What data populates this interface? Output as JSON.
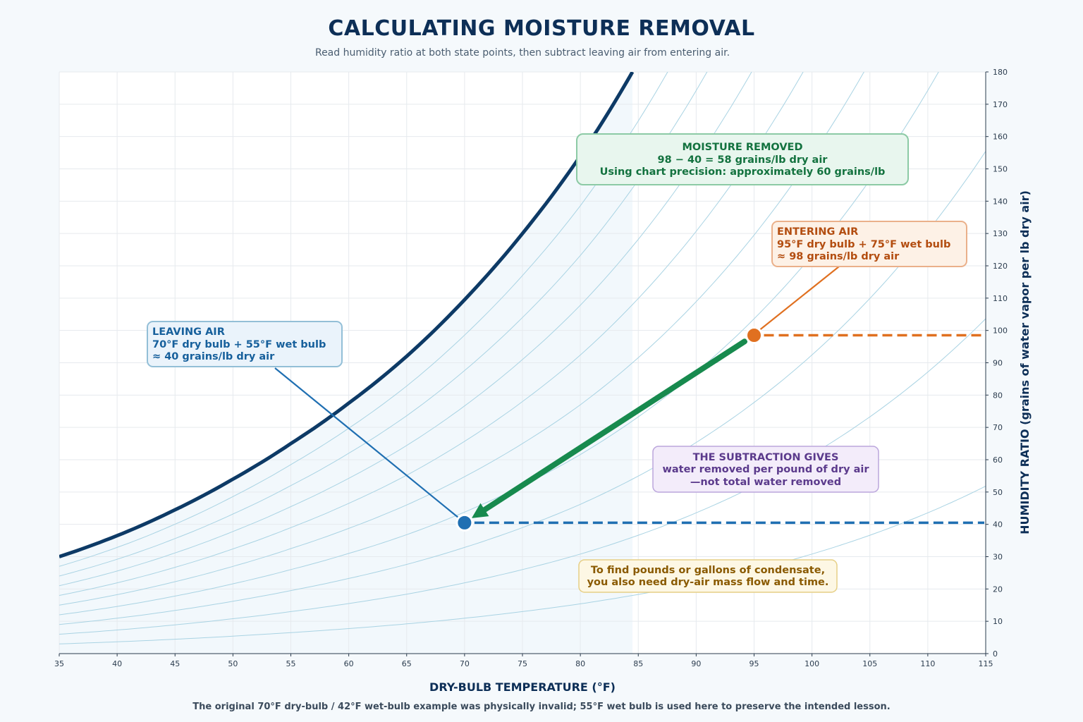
{
  "chart_data": {
    "type": "line",
    "title": "CALCULATING MOISTURE REMOVAL",
    "subtitle": "Read humidity ratio at both state points, then subtract leaving air from entering air.",
    "xlabel": "DRY-BULB TEMPERATURE (°F)",
    "ylabel": "HUMIDITY RATIO (grains of water vapor per lb dry air)",
    "xlim": [
      35,
      115
    ],
    "ylim": [
      0,
      180
    ],
    "x_ticks": [
      35,
      40,
      45,
      50,
      55,
      60,
      65,
      70,
      75,
      80,
      85,
      90,
      95,
      100,
      105,
      110,
      115
    ],
    "y_ticks": [
      0,
      10,
      20,
      30,
      40,
      50,
      60,
      70,
      80,
      90,
      100,
      110,
      120,
      130,
      140,
      150,
      160,
      170,
      180
    ],
    "grid": true,
    "y_axis_position": "right",
    "saturation_curve": {
      "x": [
        35,
        40,
        45,
        50,
        55,
        60,
        65,
        70,
        75,
        80,
        84.5
      ],
      "y": [
        30,
        36.5,
        44.5,
        54,
        65,
        77.5,
        92,
        109.5,
        130,
        154,
        180
      ]
    },
    "rh_curves": [
      0.1,
      0.2,
      0.3,
      0.4,
      0.5,
      0.6,
      0.7,
      0.8,
      0.9
    ],
    "points": [
      {
        "name": "entering",
        "x": 95,
        "y": 98.5,
        "color": "#e07020"
      },
      {
        "name": "leaving",
        "x": 70,
        "y": 40.5,
        "color": "#1f6fb2"
      }
    ],
    "annotations": {
      "removed": {
        "title": "MOISTURE REMOVED",
        "line2": "98 − 40 = 58 grains/lb dry air",
        "line3": "Using chart precision: approximately 60 grains/lb"
      },
      "entering": {
        "title": "ENTERING AIR",
        "line2": "95°F dry bulb + 75°F wet bulb",
        "line3": "≈ 98 grains/lb dry air"
      },
      "leaving": {
        "title": "LEAVING AIR",
        "line2": "70°F dry bulb + 55°F wet bulb",
        "line3": "≈ 40 grains/lb dry air"
      },
      "subtraction": {
        "title": "THE SUBTRACTION GIVES",
        "line2": "water removed per pound of dry air",
        "line3": "—not total water removed"
      },
      "condensate": {
        "line1": "To find pounds or gallons of condensate,",
        "line2": "you also need dry-air mass flow and time."
      }
    },
    "footnote": "The original 70°F dry-bulb / 42°F wet-bulb example was physically invalid; 55°F wet bulb is used here to preserve the intended lesson."
  },
  "colors": {
    "saturation": "#0d3a66",
    "rh_curve": "#a9d3e3",
    "grid": "#e6eaee",
    "removal_arrow": "#178a4e",
    "entering": "#e07020",
    "leaving": "#1f6fb2"
  }
}
